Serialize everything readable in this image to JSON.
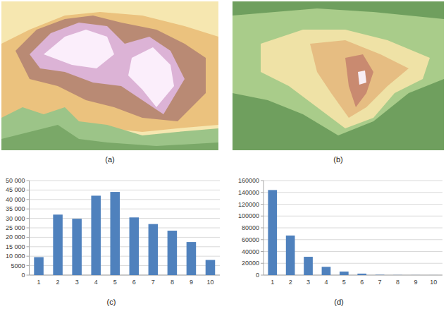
{
  "figure_panels": [
    {
      "label": "(a)"
    },
    {
      "label": "(b)"
    }
  ],
  "chart_data": [
    {
      "type": "bar",
      "title": "(c)",
      "categories": [
        "1",
        "2",
        "3",
        "4",
        "5",
        "6",
        "7",
        "8",
        "9",
        "10"
      ],
      "values": [
        9500,
        32000,
        29800,
        42000,
        44000,
        30500,
        27000,
        23500,
        17500,
        8000
      ],
      "color": "#4f81bd",
      "ylim": [
        0,
        50000
      ],
      "yticks": [
        0,
        5000,
        {
          "value": 10000,
          "label": "10 000"
        },
        {
          "value": 15000,
          "label": "15 000"
        },
        {
          "value": 20000,
          "label": "20 000"
        },
        {
          "value": 25000,
          "label": "25 000"
        },
        {
          "value": 30000,
          "label": "30 000"
        },
        {
          "value": 35000,
          "label": "35 000"
        },
        {
          "value": 40000,
          "label": "40 000"
        },
        {
          "value": 45000,
          "label": "45 000"
        },
        {
          "value": 50000,
          "label": "50 000"
        }
      ],
      "grid": true
    },
    {
      "type": "bar",
      "title": "(d)",
      "categories": [
        "1",
        "2",
        "3",
        "4",
        "5",
        "6",
        "7",
        "8",
        "9",
        "10"
      ],
      "values": [
        144000,
        67000,
        31000,
        14000,
        6000,
        2500,
        500,
        200,
        100,
        50
      ],
      "color": "#4f81bd",
      "ylim": [
        0,
        160000
      ],
      "yticks": [
        0,
        20000,
        40000,
        60000,
        80000,
        100000,
        120000,
        140000,
        160000
      ],
      "grid": true
    }
  ]
}
